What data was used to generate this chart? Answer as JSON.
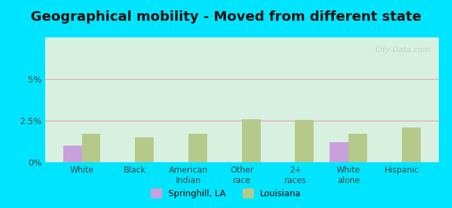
{
  "title": "Geographical mobility - Moved from different state",
  "categories": [
    "White",
    "Black",
    "American\nIndian",
    "Other\nrace",
    "2+\nraces",
    "White\nalone",
    "Hispanic"
  ],
  "springhill_values": [
    1.0,
    0.0,
    0.0,
    0.0,
    0.0,
    1.2,
    0.0
  ],
  "louisiana_values": [
    1.7,
    1.5,
    1.7,
    2.6,
    2.55,
    1.7,
    2.1
  ],
  "springhill_color": "#c9a0dc",
  "louisiana_color": "#b5c98a",
  "bar_width": 0.35,
  "ylim": [
    0,
    7.5
  ],
  "yticks": [
    0,
    2.5,
    5.0
  ],
  "ytick_labels": [
    "0%",
    "2.5%",
    "5%"
  ],
  "grid_color": "#e8a0b0",
  "bg_top_color": "#d8f0e0",
  "bg_bottom_color": "#e8f8e8",
  "outer_bg_color": "#00e5ff",
  "title_fontsize": 14,
  "legend_labels": [
    "Springhill, LA",
    "Louisiana"
  ],
  "watermark": "City-Data.com"
}
